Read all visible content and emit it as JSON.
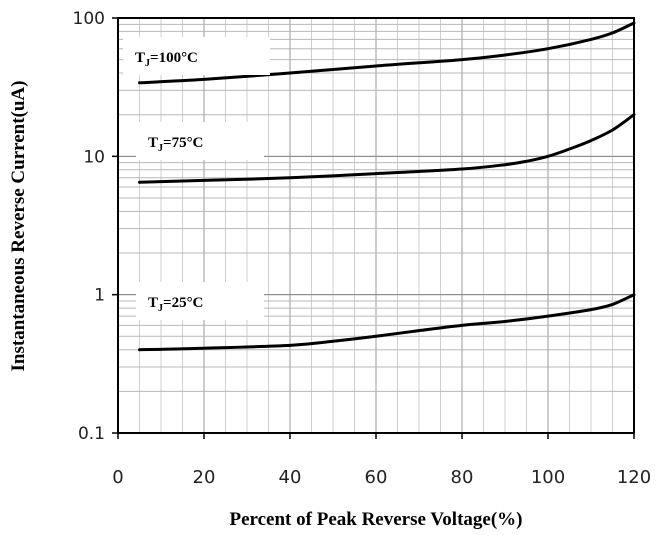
{
  "chart_data": {
    "type": "line",
    "x_scale": "linear",
    "y_scale": "log",
    "xlabel": "Percent of Peak Reverse Voltage(%)",
    "ylabel": "Instantaneous Reverse Current(uA)",
    "xlim": [
      0,
      120
    ],
    "ylim": [
      0.1,
      100
    ],
    "x_ticks": [
      "0",
      "20",
      "40",
      "60",
      "80",
      "100",
      "120"
    ],
    "y_ticks": [
      "0.1",
      "1",
      "10",
      "100"
    ],
    "grid": true,
    "series": [
      {
        "label_main": "T",
        "label_sub": "J",
        "label_rest": "=100°C",
        "x": [
          5,
          20,
          40,
          60,
          80,
          90,
          100,
          110,
          115,
          120
        ],
        "y": [
          34,
          36,
          40,
          45,
          50,
          54,
          60,
          70,
          78,
          92
        ]
      },
      {
        "label_main": "T",
        "label_sub": "J",
        "label_rest": "=75°C",
        "x": [
          5,
          20,
          40,
          60,
          80,
          90,
          95,
          100,
          105,
          110,
          115,
          120
        ],
        "y": [
          6.5,
          6.7,
          7.0,
          7.5,
          8.1,
          8.7,
          9.2,
          10.0,
          11.3,
          13.0,
          15.5,
          20.0
        ]
      },
      {
        "label_main": "T",
        "label_sub": "J",
        "label_rest": "=25°C",
        "x": [
          5,
          20,
          40,
          50,
          60,
          70,
          80,
          90,
          100,
          110,
          115,
          120
        ],
        "y": [
          0.4,
          0.41,
          0.43,
          0.46,
          0.5,
          0.55,
          0.6,
          0.64,
          0.7,
          0.78,
          0.85,
          1.0
        ]
      }
    ]
  }
}
